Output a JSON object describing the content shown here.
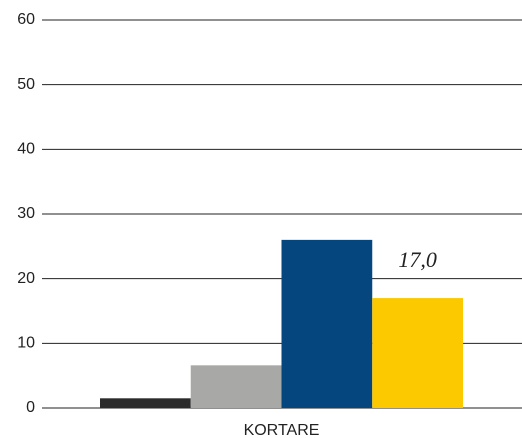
{
  "chart_data": {
    "type": "bar",
    "categories": [
      "KORTARE"
    ],
    "series": [
      {
        "color": "#2b2b2b",
        "values": [
          1.5
        ]
      },
      {
        "color": "#a8a8a6",
        "values": [
          6.6
        ]
      },
      {
        "color": "#06467f",
        "values": [
          26.0
        ]
      },
      {
        "color": "#fcc800",
        "values": [
          17.0
        ],
        "value_labels": [
          "17,0"
        ]
      }
    ],
    "ylim": [
      0,
      60
    ],
    "yticks": [
      0,
      10,
      20,
      30,
      40,
      50,
      60
    ],
    "grid": true
  }
}
